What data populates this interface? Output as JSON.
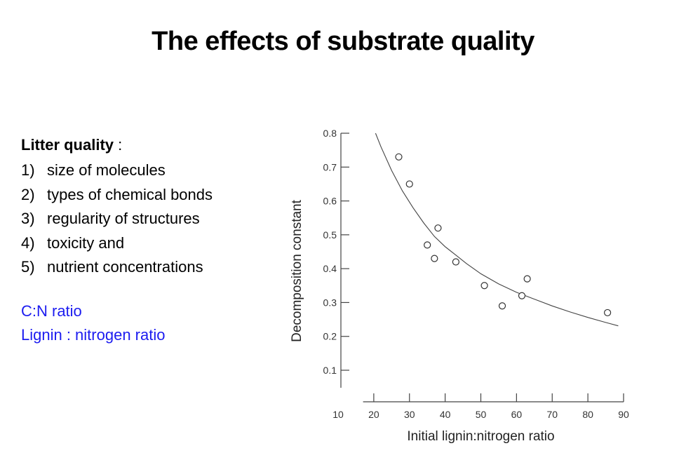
{
  "slide": {
    "title": "The effects of substrate quality",
    "litter_quality_label": "Litter quality",
    "litter_quality_colon": " :",
    "items": [
      {
        "num": "1)",
        "text": "size of molecules"
      },
      {
        "num": "2)",
        "text": "types of chemical bonds"
      },
      {
        "num": "3)",
        "text": "regularity of structures"
      },
      {
        "num": "4)",
        "text": "toxicity and"
      },
      {
        "num": "5)",
        "text": "nutrient concentrations"
      }
    ],
    "ratios": [
      "C:N ratio",
      "Lignin : nitrogen ratio"
    ],
    "ratio_color": "#1c1cf0"
  },
  "chart_data": {
    "type": "scatter",
    "xlabel": "Initial lignin:nitrogen ratio",
    "ylabel": "Decomposition constant",
    "xlim": [
      10,
      90
    ],
    "ylim": [
      0.0,
      0.8
    ],
    "xticks": [
      10,
      20,
      30,
      40,
      50,
      60,
      70,
      80,
      90
    ],
    "yticks": [
      0.1,
      0.2,
      0.3,
      0.4,
      0.5,
      0.6,
      0.7,
      0.8
    ],
    "ytick_labels": [
      "0.1",
      "0.2",
      "0.3",
      "0.4",
      "0.5",
      "0.6",
      "0.7",
      "0.8"
    ],
    "grid": false,
    "points": [
      {
        "x": 27,
        "y": 0.73
      },
      {
        "x": 30,
        "y": 0.65
      },
      {
        "x": 35,
        "y": 0.47
      },
      {
        "x": 37,
        "y": 0.43
      },
      {
        "x": 38,
        "y": 0.52
      },
      {
        "x": 43,
        "y": 0.42
      },
      {
        "x": 51,
        "y": 0.35
      },
      {
        "x": 56,
        "y": 0.29
      },
      {
        "x": 61.5,
        "y": 0.32
      },
      {
        "x": 63,
        "y": 0.37
      },
      {
        "x": 85.5,
        "y": 0.27
      }
    ],
    "fit_curve": {
      "x": [
        20.5,
        22,
        25,
        28,
        31,
        34,
        37,
        40,
        43,
        46,
        50,
        55,
        60,
        65,
        70,
        75,
        80,
        85,
        88.5
      ],
      "y": [
        0.8,
        0.76,
        0.69,
        0.63,
        0.58,
        0.535,
        0.495,
        0.465,
        0.44,
        0.415,
        0.385,
        0.355,
        0.33,
        0.31,
        0.29,
        0.272,
        0.256,
        0.241,
        0.231
      ]
    }
  }
}
